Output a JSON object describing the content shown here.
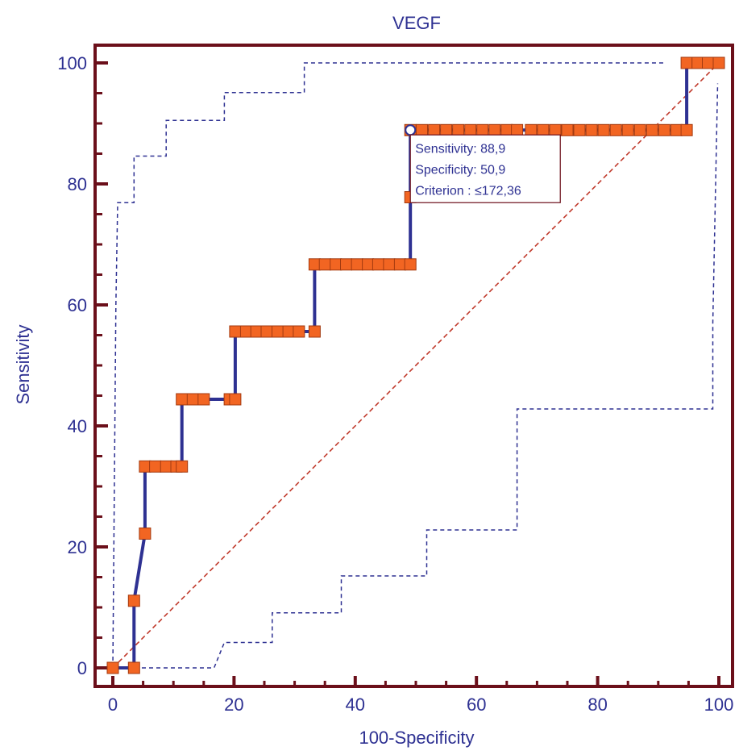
{
  "chart_data": {
    "type": "line",
    "title": "VEGF",
    "xlabel": "100-Specificity",
    "ylabel": "Sensitivity",
    "xlim": [
      0,
      100
    ],
    "ylim": [
      0,
      100
    ],
    "xticks": [
      0,
      20,
      40,
      60,
      80,
      100
    ],
    "yticks": [
      0,
      20,
      40,
      60,
      80,
      100
    ],
    "grid": false,
    "colors": {
      "roc_line": "#2e3192",
      "marker_fill": "#f26522",
      "marker_edge": "#a33a10",
      "diagonal": "#c0392b",
      "confidence": "#2e3192",
      "frame": "#6b0f1a",
      "text": "#2e3192"
    },
    "series": [
      {
        "type": "roc_curve",
        "points": [
          [
            0,
            0
          ],
          [
            3.5,
            0
          ],
          [
            3.5,
            11.1
          ],
          [
            5.3,
            22.2
          ],
          [
            5.3,
            33.3
          ],
          [
            7.0,
            33.3
          ],
          [
            8.8,
            33.3
          ],
          [
            10.5,
            33.3
          ],
          [
            11.4,
            33.3
          ],
          [
            11.4,
            44.4
          ],
          [
            13.2,
            44.4
          ],
          [
            15.0,
            44.4
          ],
          [
            19.3,
            44.4
          ],
          [
            20.2,
            44.4
          ],
          [
            20.2,
            55.6
          ],
          [
            22.0,
            55.6
          ],
          [
            23.7,
            55.6
          ],
          [
            25.4,
            55.6
          ],
          [
            27.2,
            55.6
          ],
          [
            29.0,
            55.6
          ],
          [
            30.7,
            55.6
          ],
          [
            33.3,
            55.6
          ],
          [
            33.3,
            66.7
          ],
          [
            35.0,
            66.7
          ],
          [
            36.8,
            66.7
          ],
          [
            38.5,
            66.7
          ],
          [
            40.3,
            66.7
          ],
          [
            42.1,
            66.7
          ],
          [
            43.8,
            66.7
          ],
          [
            45.6,
            66.7
          ],
          [
            47.4,
            66.7
          ],
          [
            49.1,
            66.7
          ],
          [
            49.1,
            77.8
          ],
          [
            49.1,
            88.9
          ],
          [
            51.0,
            88.9
          ],
          [
            53.0,
            88.9
          ],
          [
            55.0,
            88.9
          ],
          [
            57.0,
            88.9
          ],
          [
            59.0,
            88.9
          ],
          [
            61.0,
            88.9
          ],
          [
            63.0,
            88.9
          ],
          [
            65.0,
            88.9
          ],
          [
            66.7,
            88.9
          ],
          [
            69.0,
            88.9
          ],
          [
            71.0,
            88.9
          ],
          [
            73.0,
            88.9
          ],
          [
            75.0,
            88.9
          ],
          [
            77.0,
            88.9
          ],
          [
            79.0,
            88.9
          ],
          [
            81.0,
            88.9
          ],
          [
            83.0,
            88.9
          ],
          [
            85.0,
            88.9
          ],
          [
            87.0,
            88.9
          ],
          [
            89.0,
            88.9
          ],
          [
            91.0,
            88.9
          ],
          [
            93.0,
            88.9
          ],
          [
            94.7,
            88.9
          ],
          [
            94.7,
            100
          ],
          [
            96.5,
            100
          ],
          [
            98.2,
            100
          ],
          [
            100,
            100
          ]
        ]
      },
      {
        "type": "confidence_upper",
        "points": [
          [
            0,
            0
          ],
          [
            0.5,
            60
          ],
          [
            0.8,
            76.9
          ],
          [
            3.5,
            76.9
          ],
          [
            3.5,
            84.6
          ],
          [
            8.8,
            84.6
          ],
          [
            8.8,
            90.5
          ],
          [
            18.4,
            90.5
          ],
          [
            18.4,
            95.1
          ],
          [
            31.6,
            95.1
          ],
          [
            31.6,
            100
          ],
          [
            91.2,
            100
          ]
        ]
      },
      {
        "type": "confidence_lower",
        "points": [
          [
            0,
            0
          ],
          [
            16.7,
            0
          ],
          [
            18.4,
            4.2
          ],
          [
            26.3,
            4.2
          ],
          [
            26.3,
            9.1
          ],
          [
            37.7,
            9.1
          ],
          [
            37.7,
            15.2
          ],
          [
            51.8,
            15.2
          ],
          [
            51.8,
            22.8
          ],
          [
            66.7,
            22.8
          ],
          [
            66.7,
            42.8
          ],
          [
            99.0,
            42.8
          ],
          [
            99.0,
            57.0
          ],
          [
            99.8,
            96.6
          ]
        ]
      },
      {
        "type": "reference_diagonal",
        "points": [
          [
            0,
            0
          ],
          [
            100,
            100
          ]
        ]
      }
    ],
    "annotation": {
      "point": [
        49.1,
        88.9
      ],
      "lines": [
        "Sensitivity: 88,9",
        "Specificity: 50,9",
        "Criterion : ≤172,36"
      ]
    }
  }
}
